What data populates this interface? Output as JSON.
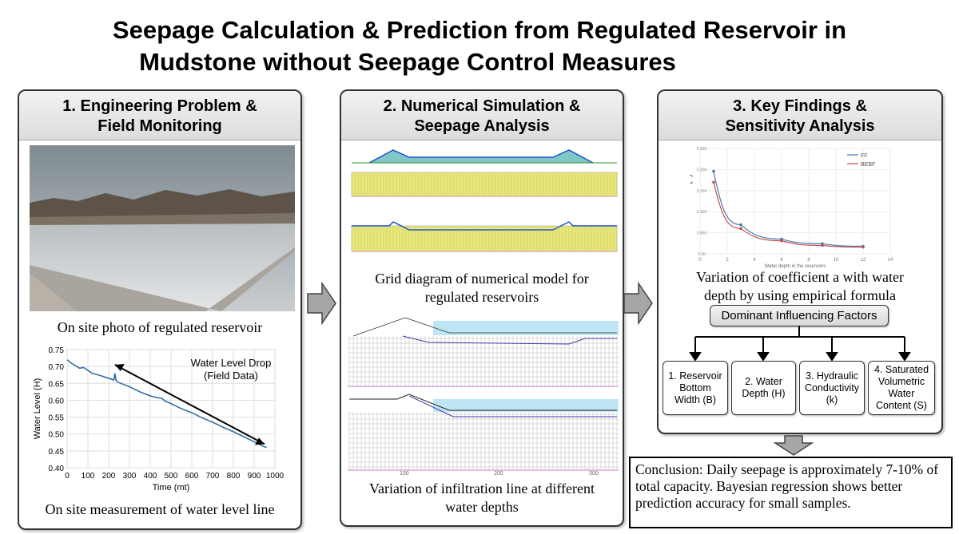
{
  "title": {
    "line1": "Seepage Calculation & Prediction from Regulated Reservoir in",
    "line2": "Mudstone without Seepage Control Measures"
  },
  "panels": [
    {
      "heading1": "1. Engineering Problem &",
      "heading2": "Field Monitoring",
      "photo_caption": "On site photo of regulated reservoir",
      "chart_caption": "On site measurement of water level line"
    },
    {
      "heading1": "2. Numerical Simulation &",
      "heading2": "Seepage Analysis",
      "grid_caption1": "Grid diagram of numerical model for",
      "grid_caption2": "regulated reservoirs",
      "infil_caption1": "Variation of infiltration line at different",
      "infil_caption2": "water depths",
      "infil_ticks": [
        "100",
        "200",
        "300"
      ]
    },
    {
      "heading1": "3. Key Findings &",
      "heading2": "Sensitivity Analysis",
      "chart_caption1": "Variation of coefficient a with water",
      "chart_caption2": "depth by using empirical formula",
      "factors_title": "Dominant Influencing Factors",
      "factors": [
        [
          "1. Reservoir",
          "Bottom",
          "Width (B)"
        ],
        [
          "2. Water",
          "Depth (H)"
        ],
        [
          "3. Hydraulic",
          "Conductivity",
          "(k)"
        ],
        [
          "4. Saturated",
          "Volumetric",
          "Water",
          "Content (S)"
        ]
      ]
    }
  ],
  "conclusion": "Conclusion: Daily seepage is approximately 7-10% of total capacity. Bayesian regression shows better prediction accuracy for small samples.",
  "colors": {
    "line": "#3a6ea5",
    "ff": "#4a78b0",
    "bebf": "#c0504d",
    "arrow": "#999999",
    "water": "#bfe6f5",
    "mesh": "#e8e87a"
  },
  "chart_data": [
    {
      "type": "line",
      "title": "",
      "xlabel": "Time (mt)",
      "ylabel": "Water Level (H)",
      "xlim": [
        0,
        1000
      ],
      "ylim": [
        0.4,
        0.75
      ],
      "xticks": [
        "0",
        "100",
        "200",
        "300",
        "400",
        "500",
        "600",
        "700",
        "800",
        "900",
        "1000"
      ],
      "yticks": [
        "0.40",
        "0.45",
        "0.50",
        "0.55",
        "0.60",
        "0.65",
        "0.70",
        "0.75"
      ],
      "grid": true,
      "annotation": [
        "Water Level Drop",
        "(Field Data)"
      ],
      "x": [
        0,
        20,
        60,
        80,
        120,
        150,
        200,
        225,
        230,
        235,
        240,
        250,
        300,
        350,
        400,
        440,
        455,
        470,
        500,
        550,
        600,
        650,
        700,
        750,
        800,
        850,
        900,
        950,
        960
      ],
      "y": [
        0.72,
        0.71,
        0.695,
        0.697,
        0.68,
        0.675,
        0.665,
        0.66,
        0.68,
        0.66,
        0.655,
        0.652,
        0.64,
        0.625,
        0.613,
        0.607,
        0.606,
        0.598,
        0.59,
        0.575,
        0.563,
        0.548,
        0.535,
        0.52,
        0.507,
        0.492,
        0.477,
        0.462,
        0.46
      ]
    },
    {
      "type": "line",
      "title": "",
      "xlabel": "Water depth in the reservoirs",
      "ylabel": "Coefficient (a)",
      "xlim": [
        0,
        14
      ],
      "ylim": [
        0,
        0.25
      ],
      "xticks": [
        "0",
        "2",
        "4",
        "6",
        "8",
        "10",
        "12",
        "14"
      ],
      "yticks": [
        "0.00",
        "0.050",
        "0.100",
        "0.150",
        "0.200",
        "0.250"
      ],
      "grid": true,
      "legend": "top-right",
      "x": [
        1,
        3,
        6,
        9,
        12
      ],
      "series": [
        {
          "name": "FF",
          "values": [
            0.196,
            0.069,
            0.035,
            0.024,
            0.018
          ]
        },
        {
          "name": "BEBF",
          "values": [
            0.17,
            0.06,
            0.031,
            0.02,
            0.016
          ]
        }
      ]
    }
  ]
}
